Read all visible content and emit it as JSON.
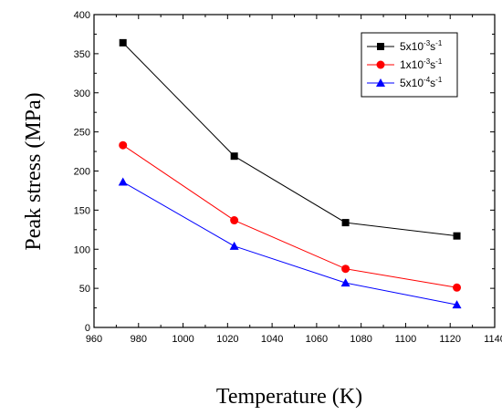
{
  "chart_data": {
    "type": "line",
    "xlabel": "Temperature (K)",
    "ylabel": "Peak stress (MPa)",
    "xlim": [
      960,
      1140
    ],
    "ylim": [
      0,
      400
    ],
    "x_ticks": [
      960,
      980,
      1000,
      1020,
      1040,
      1060,
      1080,
      1100,
      1120,
      1140
    ],
    "y_ticks": [
      0,
      50,
      100,
      150,
      200,
      250,
      300,
      350,
      400
    ],
    "grid": false,
    "legend_position": "top-right",
    "series": [
      {
        "name": "5x10-3s-1",
        "legend": {
          "base": "5x10",
          "exp": "-3",
          "unit": "s",
          "unit_exp": "-1"
        },
        "color": "#000000",
        "marker": "square",
        "x": [
          973,
          1023,
          1073,
          1123
        ],
        "y": [
          364,
          219,
          134,
          117
        ]
      },
      {
        "name": "1x10-3s-1",
        "legend": {
          "base": "1x10",
          "exp": "-3",
          "unit": "s",
          "unit_exp": "-1"
        },
        "color": "#ff0000",
        "marker": "circle",
        "x": [
          973,
          1023,
          1073,
          1123
        ],
        "y": [
          233,
          137,
          75,
          51
        ]
      },
      {
        "name": "5x10-4s-1",
        "legend": {
          "base": "5x10",
          "exp": "-4",
          "unit": "s",
          "unit_exp": "-1"
        },
        "color": "#0000ff",
        "marker": "triangle",
        "x": [
          973,
          1023,
          1073,
          1123
        ],
        "y": [
          186,
          104,
          57,
          29
        ]
      }
    ]
  }
}
